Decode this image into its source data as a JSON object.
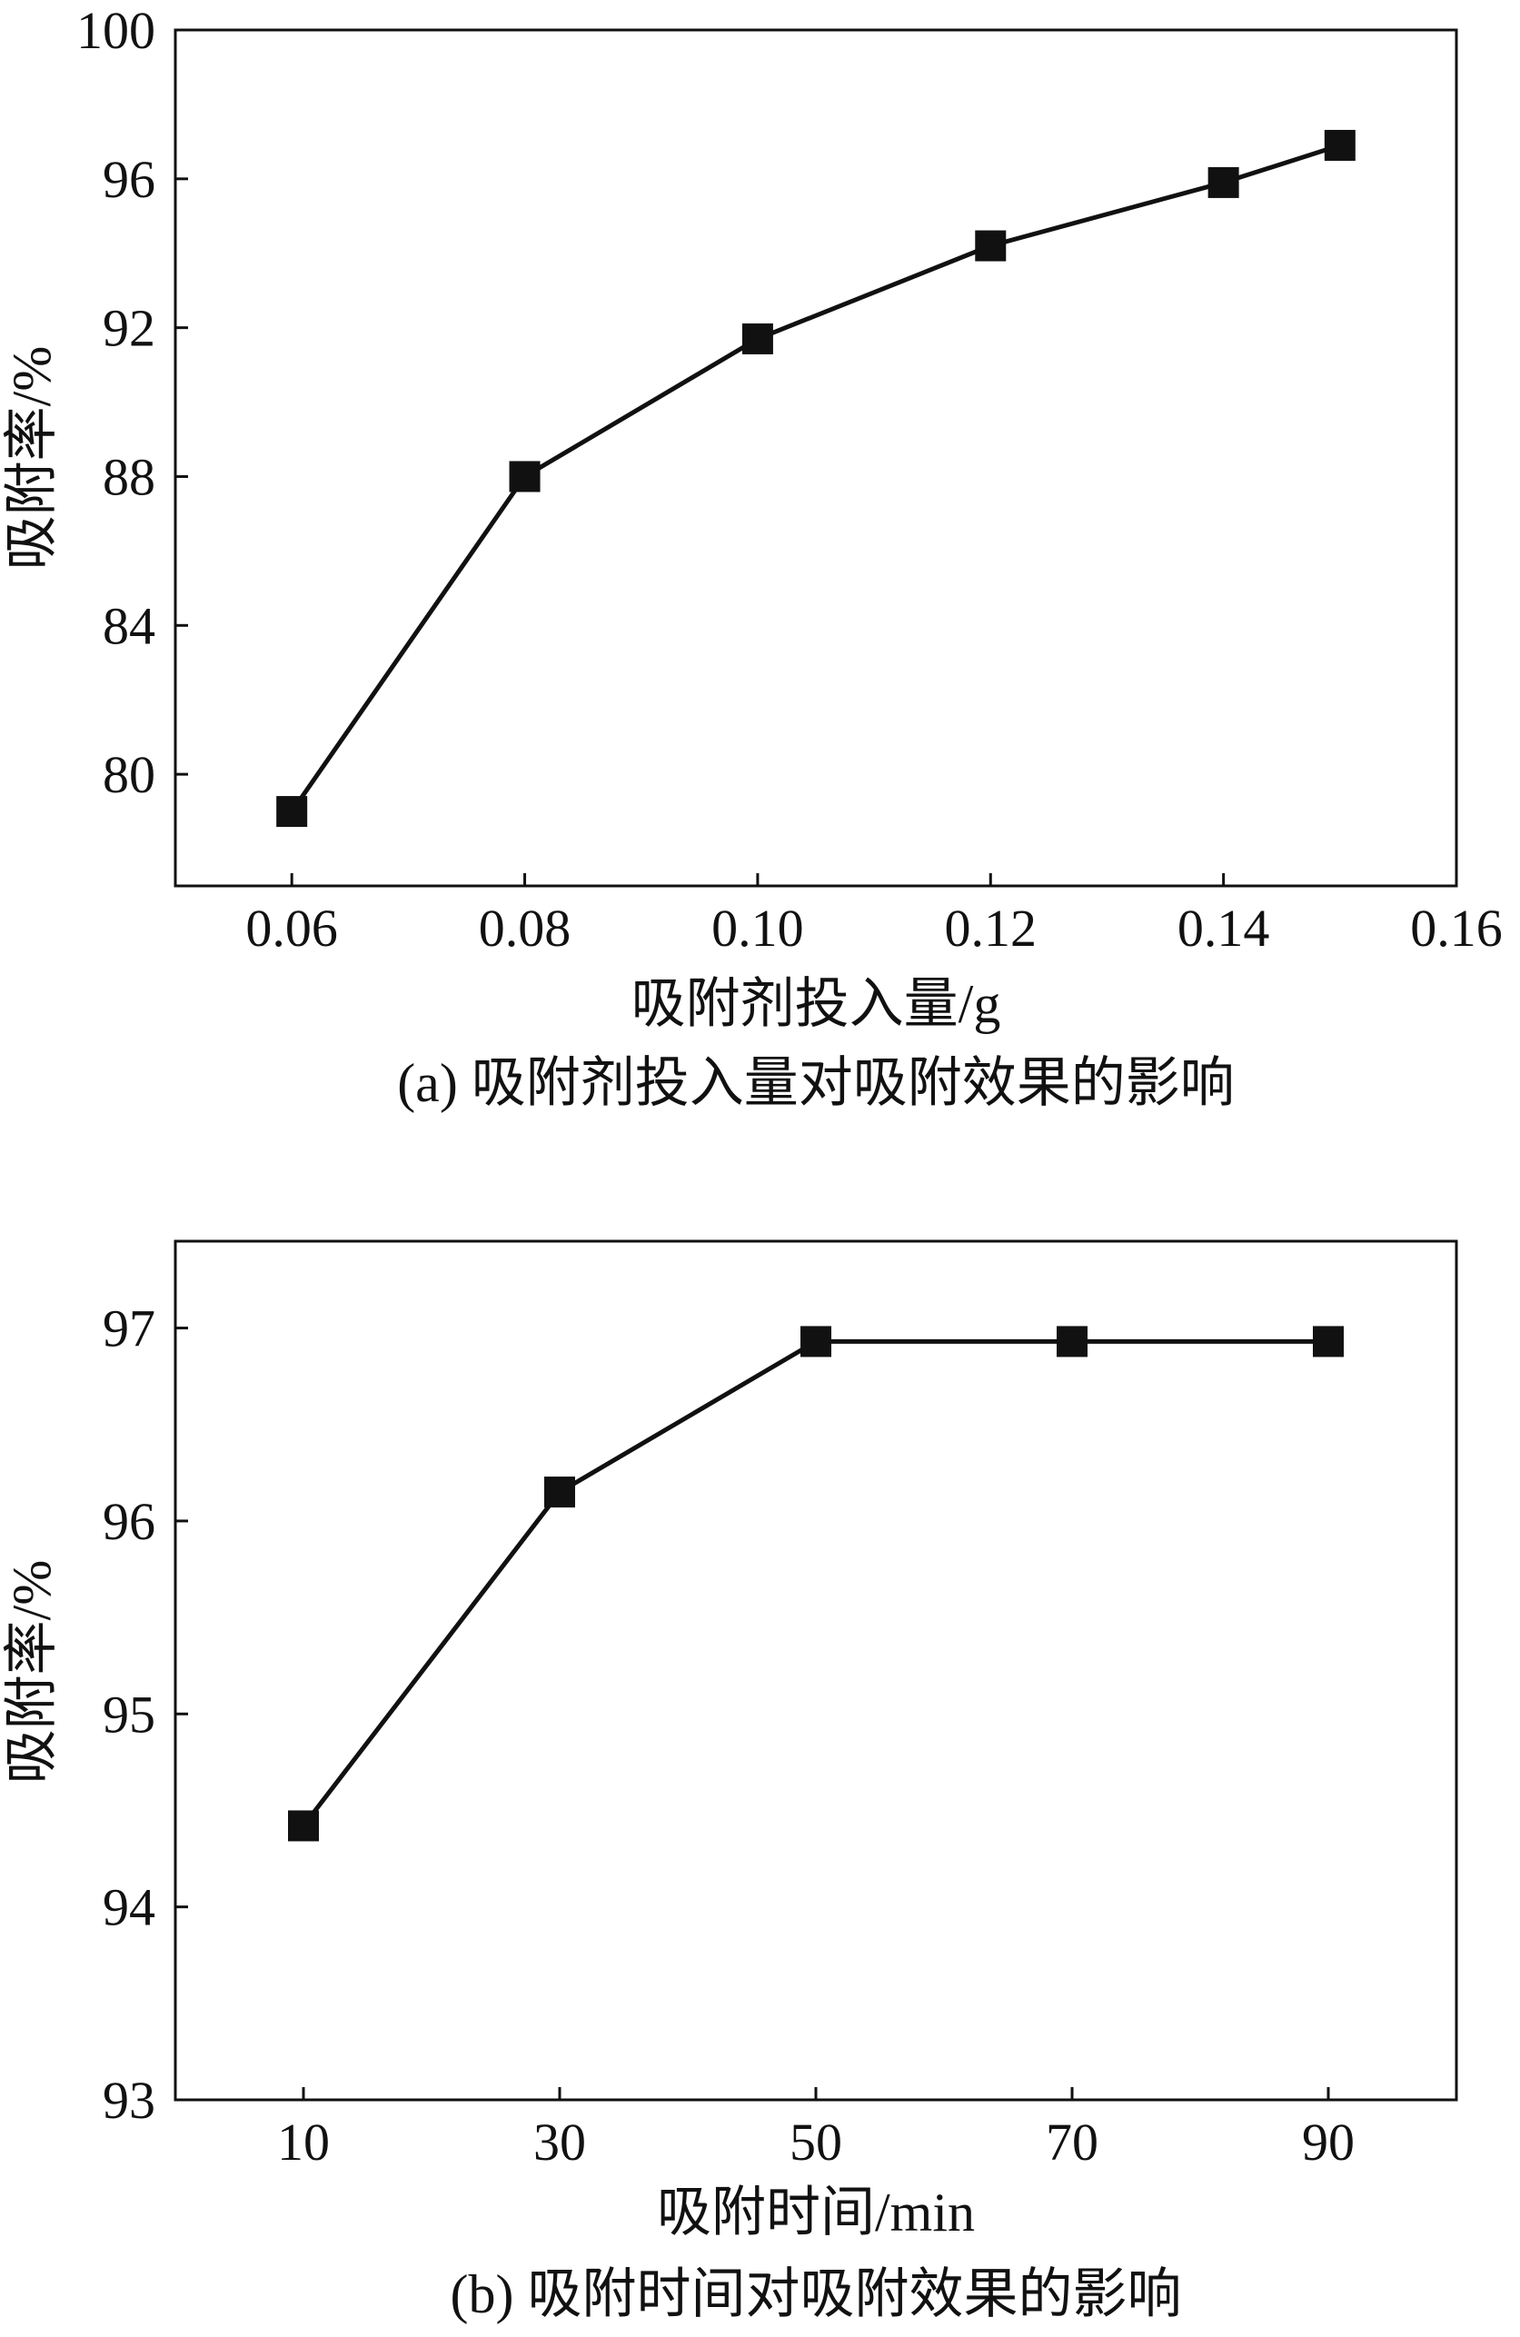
{
  "chart_data": [
    {
      "type": "line",
      "caption": "(a) 吸附剂投入量对吸附效果的影响",
      "xlabel": "吸附剂投入量/g",
      "ylabel": "吸附率/%",
      "xlim": [
        0.05,
        0.16
      ],
      "ylim": [
        77,
        100
      ],
      "xticks": [
        0.06,
        0.08,
        0.1,
        0.12,
        0.14,
        0.16
      ],
      "xtick_labels": [
        "0.06",
        "0.08",
        "0.10",
        "0.12",
        "0.14",
        "0.16"
      ],
      "yticks": [
        80,
        84,
        88,
        92,
        96,
        100
      ],
      "ytick_labels": [
        "80",
        "84",
        "88",
        "92",
        "96",
        "100"
      ],
      "grid": false,
      "marker": "square",
      "series": [
        {
          "x": [
            0.06,
            0.08,
            0.1,
            0.12,
            0.14,
            0.15
          ],
          "y": [
            79.0,
            88.0,
            91.7,
            94.2,
            95.9,
            96.9
          ]
        }
      ]
    },
    {
      "type": "line",
      "caption": "(b) 吸附时间对吸附效果的影响",
      "xlabel": "吸附时间/min",
      "ylabel": "吸附率/%",
      "xlim": [
        0,
        100
      ],
      "ylim": [
        93,
        97.45
      ],
      "xticks": [
        10,
        30,
        50,
        70,
        90
      ],
      "xtick_labels": [
        "10",
        "30",
        "50",
        "70",
        "90"
      ],
      "yticks": [
        93,
        94,
        95,
        96,
        97
      ],
      "ytick_labels": [
        "93",
        "94",
        "95",
        "96",
        "97"
      ],
      "grid": false,
      "marker": "square",
      "series": [
        {
          "x": [
            10,
            30,
            50,
            70,
            90
          ],
          "y": [
            94.42,
            96.15,
            96.93,
            96.93,
            96.93
          ]
        }
      ]
    }
  ]
}
